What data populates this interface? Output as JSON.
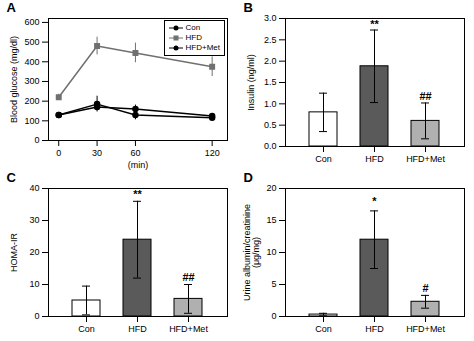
{
  "chart_data": [
    {
      "type": "line",
      "title": "A",
      "xlabel": "(min)",
      "ylabel": "Blood glucose (mg/dl)",
      "x": [
        0,
        30,
        60,
        120
      ],
      "series": [
        {
          "name": "Con",
          "color": "black",
          "marker": "circle",
          "values": [
            130,
            170,
            160,
            125
          ],
          "errors": [
            10,
            15,
            20,
            10
          ]
        },
        {
          "name": "HFD",
          "color": "#707070",
          "marker": "square",
          "values": [
            220,
            480,
            445,
            375
          ],
          "errors": [
            15,
            45,
            50,
            50
          ]
        },
        {
          "name": "HFD+Met",
          "color": "black",
          "marker": "circle",
          "values": [
            130,
            185,
            130,
            115
          ],
          "errors": [
            10,
            40,
            25,
            10
          ]
        }
      ],
      "xlim": [
        -8,
        132
      ],
      "xticks": [
        0,
        30,
        60,
        120
      ],
      "ylim": [
        0,
        620
      ],
      "yticks": [
        0,
        100,
        200,
        300,
        400,
        500,
        600
      ],
      "legend": "upper right"
    },
    {
      "type": "bar",
      "title": "B",
      "ylabel": "Insulin (ng/ml)",
      "categories": [
        "Con",
        "HFD",
        "HFD+Met"
      ],
      "values": [
        0.8,
        1.88,
        0.6
      ],
      "errors": [
        0.45,
        0.85,
        0.42
      ],
      "colors": [
        "white",
        "#5a5a5a",
        "#b0b0b0"
      ],
      "ylim": [
        0,
        3.0
      ],
      "yticks": [
        {
          "value": 0,
          "label": "0.0"
        },
        0.5,
        {
          "value": 1,
          "label": "1.0"
        },
        1.5,
        {
          "value": 2,
          "label": "2.0"
        },
        2.5,
        {
          "value": 3,
          "label": "3.0"
        }
      ],
      "annotations": [
        {
          "x": "HFD",
          "y": 2.78,
          "text": "**"
        },
        {
          "x": "HFD+Met",
          "y": 1.08,
          "text": "##"
        }
      ]
    },
    {
      "type": "bar",
      "title": "C",
      "ylabel": "HOMA-IR",
      "categories": [
        "Con",
        "HFD",
        "HFD+Met"
      ],
      "values": [
        5.0,
        24.0,
        5.5
      ],
      "errors": [
        4.5,
        12.0,
        4.5
      ],
      "colors": [
        "white",
        "#5a5a5a",
        "#b0b0b0"
      ],
      "ylim": [
        0,
        40
      ],
      "yticks": [
        0,
        10,
        20,
        30,
        40
      ],
      "annotations": [
        {
          "x": "HFD",
          "y": 37.0,
          "text": "**"
        },
        {
          "x": "HFD+Met",
          "y": 11.0,
          "text": "##"
        }
      ]
    },
    {
      "type": "bar",
      "title": "D",
      "ylabel": "Urine albumin/creatinine\n(μg/mg)",
      "categories": [
        "Con",
        "HFD",
        "HFD+Met"
      ],
      "values": [
        0.3,
        12.0,
        2.3
      ],
      "errors": [
        0.2,
        4.5,
        1.0
      ],
      "colors": [
        "white",
        "#5a5a5a",
        "#b0b0b0"
      ],
      "ylim": [
        0,
        20
      ],
      "yticks": [
        0,
        5,
        10,
        15,
        20
      ],
      "annotations": [
        {
          "x": "HFD",
          "y": 17.5,
          "text": "*"
        },
        {
          "x": "HFD+Met",
          "y": 3.8,
          "text": "#"
        }
      ]
    }
  ]
}
